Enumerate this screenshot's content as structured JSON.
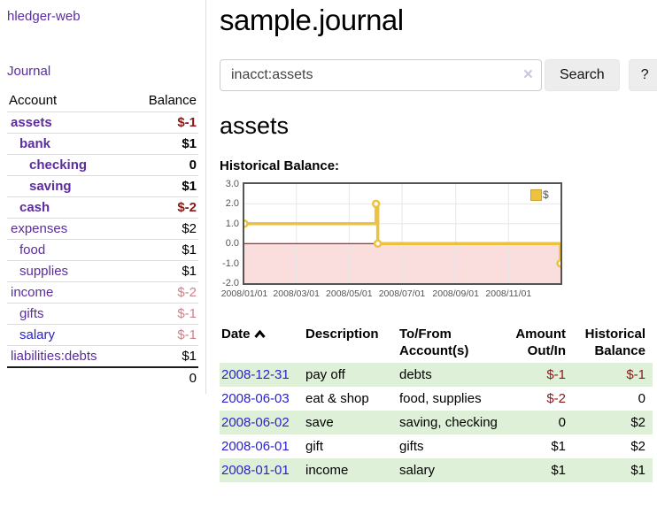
{
  "sidebar": {
    "app_title": "hledger-web",
    "journal_link": "Journal",
    "columns": {
      "account": "Account",
      "balance": "Balance"
    },
    "accounts": [
      {
        "name": "assets",
        "balance": "$-1",
        "level": 1,
        "bold": true,
        "balance_tone": "neg-dark"
      },
      {
        "name": "bank",
        "balance": "$1",
        "level": 2,
        "bold": true,
        "balance_tone": "normal"
      },
      {
        "name": "checking",
        "balance": "0",
        "level": 3,
        "bold": true,
        "balance_tone": "normal"
      },
      {
        "name": "saving",
        "balance": "$1",
        "level": 3,
        "bold": true,
        "balance_tone": "normal"
      },
      {
        "name": "cash",
        "balance": "$-2",
        "level": 2,
        "bold": true,
        "balance_tone": "neg-dark"
      },
      {
        "name": "expenses",
        "balance": "$2",
        "level": 1,
        "bold": false,
        "balance_tone": "normal"
      },
      {
        "name": "food",
        "balance": "$1",
        "level": 2,
        "bold": false,
        "balance_tone": "normal"
      },
      {
        "name": "supplies",
        "balance": "$1",
        "level": 2,
        "bold": false,
        "balance_tone": "normal"
      },
      {
        "name": "income",
        "balance": "$-2",
        "level": 1,
        "bold": false,
        "balance_tone": "neg-muted"
      },
      {
        "name": "gifts",
        "balance": "$-1",
        "level": 2,
        "bold": false,
        "balance_tone": "neg-muted"
      },
      {
        "name": "salary",
        "balance": "$-1",
        "level": 2,
        "bold": false,
        "balance_tone": "neg-muted",
        "link_tone": "blue"
      },
      {
        "name": "liabilities:debts",
        "balance": "$1",
        "level": 1,
        "bold": false,
        "balance_tone": "normal"
      }
    ],
    "total": "0"
  },
  "main": {
    "title": "sample.journal",
    "account_heading": "assets",
    "chart_label": "Historical Balance:"
  },
  "search": {
    "value": "inacct:assets",
    "clear_icon": "×",
    "search_button": "Search",
    "help_button": "?"
  },
  "chart_data": {
    "type": "line",
    "step": true,
    "title": "Historical Balance:",
    "legend_position": "top-right",
    "grid": true,
    "xlim": [
      "2008-01-01",
      "2008-12-31"
    ],
    "ylim": [
      -2,
      3
    ],
    "y_ticks": [
      3.0,
      2.0,
      1.0,
      0.0,
      -1.0,
      -2.0
    ],
    "x_ticks": [
      "2008/01/01",
      "2008/03/01",
      "2008/05/01",
      "2008/07/01",
      "2008/09/01",
      "2008/11/01"
    ],
    "series": [
      {
        "name": "$",
        "color": "#edc240",
        "points": [
          [
            "2008-01-01",
            1
          ],
          [
            "2008-06-01",
            2
          ],
          [
            "2008-06-03",
            0
          ],
          [
            "2008-12-31",
            -1
          ]
        ]
      }
    ],
    "negative_region_color": "#fadddd",
    "zero_line_color": "#8b0000",
    "gridline_color": "#e7e7e7"
  },
  "register": {
    "columns": [
      "Date",
      "Description",
      "To/From Account(s)",
      "Amount Out/In",
      "Historical Balance"
    ],
    "sort_icon": "chevron-up",
    "rows": [
      {
        "date": "2008-12-31",
        "description": "pay off",
        "accounts": "debts",
        "amount": "$-1",
        "balance": "$-1"
      },
      {
        "date": "2008-06-03",
        "description": "eat & shop",
        "accounts": "food, supplies",
        "amount": "$-2",
        "balance": "0"
      },
      {
        "date": "2008-06-02",
        "description": "save",
        "accounts": "saving, checking",
        "amount": "0",
        "balance": "$2"
      },
      {
        "date": "2008-06-01",
        "description": "gift",
        "accounts": "gifts",
        "amount": "$1",
        "balance": "$2"
      },
      {
        "date": "2008-01-01",
        "description": "income",
        "accounts": "salary",
        "amount": "$1",
        "balance": "$1"
      }
    ]
  },
  "colors": {
    "accent_purple": "#5b2d9e",
    "link_blue": "#2a22cc",
    "negative_dark": "#8b1717",
    "negative_muted": "#c9838d",
    "row_green": "#dff0d8",
    "chart_line": "#edc240"
  }
}
